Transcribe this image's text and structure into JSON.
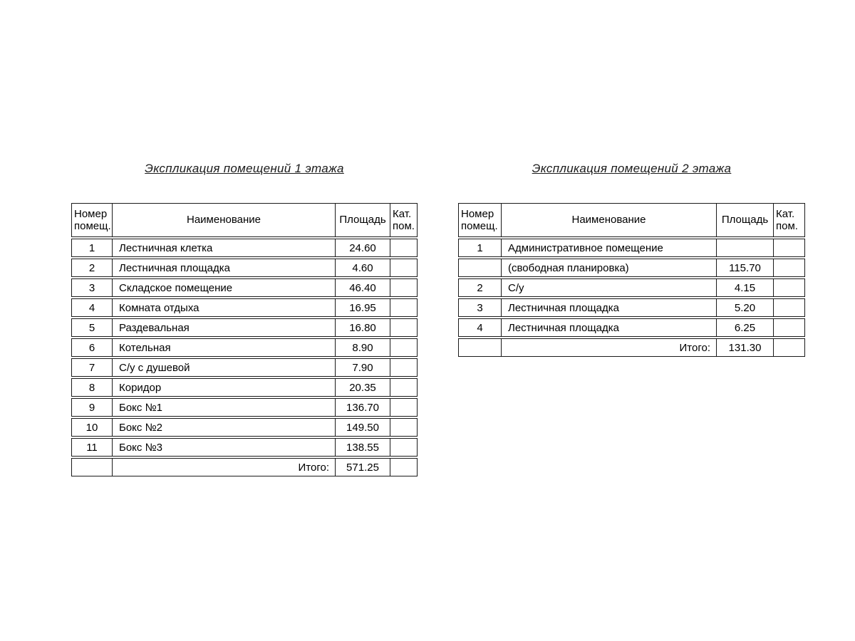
{
  "floor1": {
    "title": "Экспликация помещений 1 этажа",
    "headers": {
      "num_line1": "Номер",
      "num_line2": "помещ.",
      "name": "Наименование",
      "area": "Площадь",
      "cat_line1": "Кат.",
      "cat_line2": "пом."
    },
    "rows": [
      {
        "num": "1",
        "name": "Лестничная клетка",
        "area": "24.60",
        "cat": ""
      },
      {
        "num": "2",
        "name": "Лестничная площадка",
        "area": "4.60",
        "cat": ""
      },
      {
        "num": "3",
        "name": "Складское помещение",
        "area": "46.40",
        "cat": ""
      },
      {
        "num": "4",
        "name": "Комната отдыха",
        "area": "16.95",
        "cat": ""
      },
      {
        "num": "5",
        "name": "Раздевальная",
        "area": "16.80",
        "cat": ""
      },
      {
        "num": "6",
        "name": "Котельная",
        "area": "8.90",
        "cat": ""
      },
      {
        "num": "7",
        "name": "С/у с душевой",
        "area": "7.90",
        "cat": ""
      },
      {
        "num": "8",
        "name": "Коридор",
        "area": "20.35",
        "cat": ""
      },
      {
        "num": "9",
        "name": "Бокс №1",
        "area": "136.70",
        "cat": ""
      },
      {
        "num": "10",
        "name": "Бокс №2",
        "area": "149.50",
        "cat": ""
      },
      {
        "num": "11",
        "name": "Бокс №3",
        "area": "138.55",
        "cat": ""
      }
    ],
    "total": {
      "label": "Итого:",
      "value": "571.25"
    }
  },
  "floor2": {
    "title": "Экспликация помещений 2 этажа",
    "headers": {
      "num_line1": "Номер",
      "num_line2": "помещ.",
      "name": "Наименование",
      "area": "Площадь",
      "cat_line1": "Кат.",
      "cat_line2": "пом."
    },
    "rows": [
      {
        "num": "1",
        "name": "Административное помещение",
        "area": "",
        "cat": ""
      },
      {
        "num": "",
        "name": "(свободная планировка)",
        "area": "115.70",
        "cat": ""
      },
      {
        "num": "2",
        "name": "С/у",
        "area": "4.15",
        "cat": ""
      },
      {
        "num": "3",
        "name": "Лестничная площадка",
        "area": "5.20",
        "cat": ""
      },
      {
        "num": "4",
        "name": "Лестничная площадка",
        "area": "6.25",
        "cat": ""
      }
    ],
    "total": {
      "label": "Итого:",
      "value": "131.30"
    }
  }
}
